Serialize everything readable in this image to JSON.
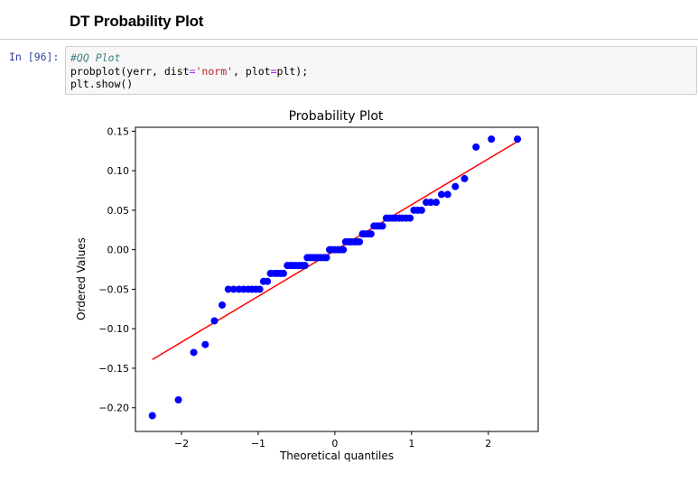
{
  "heading": "DT Probability Plot",
  "cell": {
    "prompt": "In [96]:",
    "code": {
      "comment": "#QQ Plot",
      "line2_a": "probplot(yerr, dist",
      "line2_eq1": "=",
      "line2_str": "'norm'",
      "line2_b": ", plot",
      "line2_eq2": "=",
      "line2_c": "plt);",
      "line3": "plt.show()"
    }
  },
  "chart_data": {
    "type": "scatter",
    "title": "Probability Plot",
    "xlabel": "Theoretical quantiles",
    "ylabel": "Ordered Values",
    "xlim": [
      -2.6,
      2.65
    ],
    "ylim": [
      -0.23,
      0.155
    ],
    "xticks": [
      -2,
      -1,
      0,
      1,
      2
    ],
    "xtick_labels": [
      "−2",
      "−1",
      "0",
      "1",
      "2"
    ],
    "yticks": [
      -0.2,
      -0.15,
      -0.1,
      -0.05,
      0.0,
      0.05,
      0.1,
      0.15
    ],
    "ytick_labels": [
      "−0.20",
      "−0.15",
      "−0.10",
      "−0.05",
      "0.00",
      "0.05",
      "0.10",
      "0.15"
    ],
    "marker_color": "#0000ff",
    "line_color": "#ff0000",
    "fit_line": {
      "x": [
        -2.38,
        2.38
      ],
      "y": [
        -0.139,
        0.137
      ]
    },
    "points": [
      [
        -2.38,
        -0.21
      ],
      [
        -2.04,
        -0.19
      ],
      [
        -1.84,
        -0.13
      ],
      [
        -1.69,
        -0.12
      ],
      [
        -1.57,
        -0.09
      ],
      [
        -1.47,
        -0.07
      ],
      [
        -1.39,
        -0.05
      ],
      [
        -1.32,
        -0.05
      ],
      [
        -1.25,
        -0.05
      ],
      [
        -1.19,
        -0.05
      ],
      [
        -1.13,
        -0.05
      ],
      [
        -1.08,
        -0.05
      ],
      [
        -1.03,
        -0.05
      ],
      [
        -0.98,
        -0.05
      ],
      [
        -0.93,
        -0.04
      ],
      [
        -0.88,
        -0.04
      ],
      [
        -0.84,
        -0.03
      ],
      [
        -0.79,
        -0.03
      ],
      [
        -0.75,
        -0.03
      ],
      [
        -0.71,
        -0.03
      ],
      [
        -0.67,
        -0.03
      ],
      [
        -0.62,
        -0.02
      ],
      [
        -0.58,
        -0.02
      ],
      [
        -0.55,
        -0.02
      ],
      [
        -0.51,
        -0.02
      ],
      [
        -0.47,
        -0.02
      ],
      [
        -0.43,
        -0.02
      ],
      [
        -0.39,
        -0.02
      ],
      [
        -0.36,
        -0.01
      ],
      [
        -0.32,
        -0.01
      ],
      [
        -0.28,
        -0.01
      ],
      [
        -0.25,
        -0.01
      ],
      [
        -0.21,
        -0.01
      ],
      [
        -0.18,
        -0.01
      ],
      [
        -0.14,
        -0.01
      ],
      [
        -0.11,
        -0.01
      ],
      [
        -0.07,
        0.0
      ],
      [
        -0.04,
        0.0
      ],
      [
        0.0,
        0.0
      ],
      [
        0.04,
        0.0
      ],
      [
        0.07,
        0.0
      ],
      [
        0.11,
        0.0
      ],
      [
        0.14,
        0.01
      ],
      [
        0.18,
        0.01
      ],
      [
        0.21,
        0.01
      ],
      [
        0.25,
        0.01
      ],
      [
        0.28,
        0.01
      ],
      [
        0.32,
        0.01
      ],
      [
        0.36,
        0.02
      ],
      [
        0.39,
        0.02
      ],
      [
        0.43,
        0.02
      ],
      [
        0.47,
        0.02
      ],
      [
        0.51,
        0.03
      ],
      [
        0.55,
        0.03
      ],
      [
        0.58,
        0.03
      ],
      [
        0.62,
        0.03
      ],
      [
        0.67,
        0.04
      ],
      [
        0.71,
        0.04
      ],
      [
        0.75,
        0.04
      ],
      [
        0.79,
        0.04
      ],
      [
        0.84,
        0.04
      ],
      [
        0.88,
        0.04
      ],
      [
        0.93,
        0.04
      ],
      [
        0.98,
        0.04
      ],
      [
        1.03,
        0.05
      ],
      [
        1.08,
        0.05
      ],
      [
        1.13,
        0.05
      ],
      [
        1.19,
        0.06
      ],
      [
        1.25,
        0.06
      ],
      [
        1.32,
        0.06
      ],
      [
        1.39,
        0.07
      ],
      [
        1.47,
        0.07
      ],
      [
        1.57,
        0.08
      ],
      [
        1.69,
        0.09
      ],
      [
        1.84,
        0.13
      ],
      [
        2.04,
        0.14
      ],
      [
        2.38,
        0.14
      ]
    ]
  }
}
